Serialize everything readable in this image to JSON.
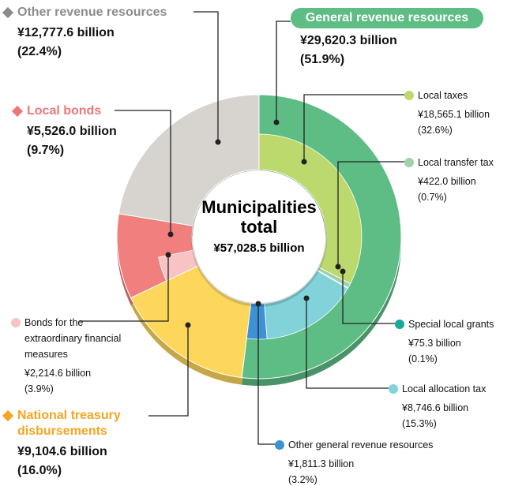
{
  "chart_data": {
    "type": "donut",
    "center_title": "Municipalities total",
    "total": 57028.5,
    "total_label": "¥57,028.5 billion",
    "segments": [
      {
        "name": "General revenue resources",
        "color": "#5dbd84",
        "label_color": "#5dbd84",
        "value": 29620.3,
        "value_label": "¥29,620.3 billion",
        "percent": 51.9,
        "percent_label": "(51.9%)",
        "children": [
          {
            "name": "Local taxes",
            "color": "#bcd96d",
            "value": 18565.1,
            "value_label": "¥18,565.1 billion",
            "percent": 32.6,
            "percent_label": "(32.6%)"
          },
          {
            "name": "Local transfer tax",
            "color": "#9fd1ab",
            "value": 422.0,
            "value_label": "¥422.0 billion",
            "percent": 0.7,
            "percent_label": "(0.7%)"
          },
          {
            "name": "Special local grants",
            "color": "#16a99c",
            "value": 75.3,
            "value_label": "¥75.3 billion",
            "percent": 0.1,
            "percent_label": "(0.1%)"
          },
          {
            "name": "Local allocation tax",
            "color": "#82d2da",
            "value": 8746.6,
            "value_label": "¥8,746.6 billion",
            "percent": 15.3,
            "percent_label": "(15.3%)"
          },
          {
            "name": "Other general revenue resources",
            "color": "#3d92d6",
            "value": 1811.3,
            "value_label": "¥1,811.3 billion",
            "percent": 3.2,
            "percent_label": "(3.2%)"
          }
        ]
      },
      {
        "name": "National treasury disbursements",
        "color": "#fdd75c",
        "label_color": "#f5a51f",
        "value": 9104.6,
        "value_label": "¥9,104.6 billion",
        "percent": 16.0,
        "percent_label": "(16.0%)",
        "children": []
      },
      {
        "name": "Local bonds",
        "color": "#f07f7e",
        "label_color": "#ef7677",
        "value": 5526.0,
        "value_label": "¥5,526.0 billion",
        "percent": 9.7,
        "percent_label": "(9.7%)",
        "children": [
          {
            "name": "Bonds for the extraordinary financial measures",
            "color": "#f8c3c3",
            "value": 2214.6,
            "value_label": "¥2,214.6 billion",
            "percent": 3.9,
            "percent_label": "(3.9%)"
          }
        ]
      },
      {
        "name": "Other revenue resources",
        "color": "#d7d4cf",
        "label_color": "#8c8c8c",
        "value": 12777.6,
        "value_label": "¥12,777.6 billion",
        "percent": 22.4,
        "percent_label": "(22.4%)",
        "children": []
      }
    ]
  }
}
